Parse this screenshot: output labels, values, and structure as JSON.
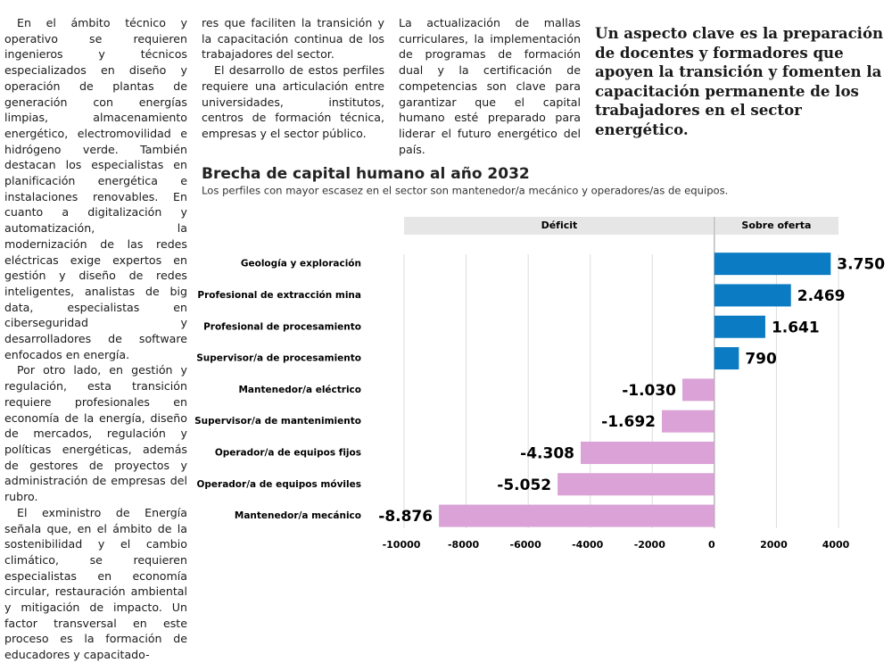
{
  "article": {
    "columns": [
      {
        "paragraphs": [
          "En el ámbito técnico y operativo se requieren ingenieros y técnicos especializados en diseño y operación de plantas de generación con energías limpias, almacenamiento energético, electromovilidad e hidrógeno verde. También destacan los especialistas en planificación energética e instalaciones renovables. En cuanto a digitalización y automatización, la modernización de las redes eléctricas exige expertos en gestión y diseño de redes inteligentes, analistas de big data, especialistas en ciberseguridad y desarrolladores de software enfocados en energía.",
          "Por otro lado, en gestión y regulación, esta transición requiere profesionales en economía de la energía, diseño de mercados, regulación y políticas energéticas, además de gestores de proyectos y administración de empresas del rubro.",
          "El exministro de Energía señala que, en el ámbito de la sostenibilidad y el cambio climático, se requieren especialistas en economía circular, restauración ambiental y mitigación de impacto. Un factor transversal en este proceso es la formación de educadores y capacitado-"
        ]
      },
      {
        "paragraphs": [
          "res que faciliten la transición y la capacitación continua de los trabajadores del sector.",
          "El desarrollo de estos perfiles requiere una articulación entre universidades, institutos, centros de formación técnica, empresas y el sector público."
        ]
      },
      {
        "paragraphs": [
          "La actualización de mallas curriculares, la implementación de programas de formación dual y la certificación de competencias son clave para garantizar que el capital humano esté preparado para liderar el futuro energético del país."
        ]
      }
    ],
    "quote": "Un aspecto clave es la preparación de docentes y formadores que apoyen la transición y fomenten la capacitación permanente de los trabajadores en el sector energético."
  },
  "chart_data": {
    "type": "hbar",
    "title": "Brecha de capital humano al año 2032",
    "subtitle": "Los perfiles con mayor escasez en el sector son mantenedor/a mecánico y operadores/as de equipos.",
    "header_labels": [
      "Déficit",
      "Sobre oferta"
    ],
    "categories": [
      "Geología y exploración",
      "Profesional de extracción mina",
      "Profesional de procesamiento",
      "Supervisor/a de procesamiento",
      "Mantenedor/a eléctrico",
      "Supervisor/a de mantenimiento",
      "Operador/a de equipos fijos",
      "Operador/a de equipos móviles",
      "Mantenedor/a mecánico"
    ],
    "values": [
      3750,
      2469,
      1641,
      790,
      -1030,
      -1692,
      -4308,
      -5052,
      -8876
    ],
    "value_labels": [
      "3.750",
      "2.469",
      "1.641",
      "790",
      "-1.030",
      "-1.692",
      "-4.308",
      "-5.052",
      "-8.876"
    ],
    "colors": {
      "positive": "#0b7cc3",
      "negative": "#daa2d6"
    },
    "xlim": [
      -10000,
      4000
    ],
    "xticks": [
      -10000,
      -8000,
      -6000,
      -4000,
      -2000,
      0,
      2000,
      4000
    ],
    "grid": true
  }
}
